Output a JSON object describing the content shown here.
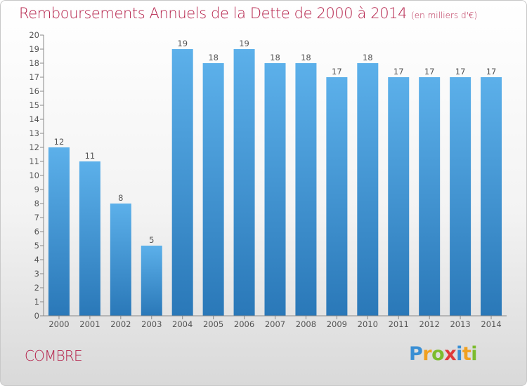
{
  "chart_data": {
    "type": "bar",
    "title": "Remboursements Annuels de la Dette de 2000 à 2014",
    "subtitle": "(en milliers d'€)",
    "categories": [
      "2000",
      "2001",
      "2002",
      "2003",
      "2004",
      "2005",
      "2006",
      "2007",
      "2008",
      "2009",
      "2010",
      "2011",
      "2012",
      "2013",
      "2014"
    ],
    "values": [
      12,
      11,
      8,
      5,
      19,
      18,
      19,
      18,
      18,
      17,
      18,
      17,
      17,
      17,
      17
    ],
    "ylim": [
      0,
      20
    ],
    "yticks": [
      0,
      1,
      2,
      3,
      4,
      5,
      6,
      7,
      8,
      9,
      10,
      11,
      12,
      13,
      14,
      15,
      16,
      17,
      18,
      19,
      20
    ],
    "grid": false,
    "data_labels": true,
    "colors": {
      "bar_top": "#5cb0ea",
      "bar_bottom": "#2a78b8",
      "text": "#b5224b"
    }
  },
  "footer": {
    "city": "COMBRE",
    "logo": {
      "letters": [
        {
          "char": "P",
          "color": "#3a8fd4"
        },
        {
          "char": "r",
          "color": "#f0a020"
        },
        {
          "char": "o",
          "color": "#7cbc2e"
        },
        {
          "char": "x",
          "color": "#e03a3a"
        },
        {
          "char": "i",
          "color": "#3a8fd4"
        },
        {
          "char": "t",
          "color": "#f0a020"
        },
        {
          "char": "i",
          "color": "#7cbc2e"
        }
      ]
    }
  }
}
